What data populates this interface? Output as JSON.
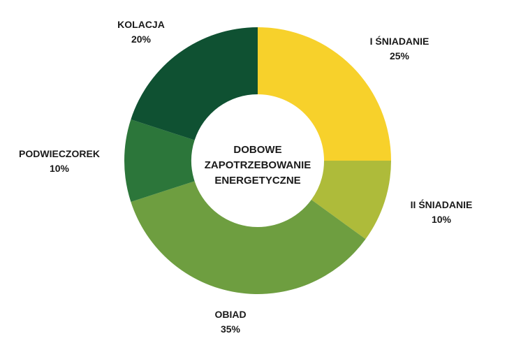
{
  "chart_data": {
    "type": "pie",
    "title": "",
    "center_label": [
      "DOBOWE",
      "ZAPOTRZEBOWANIE",
      "ENERGETYCZNE"
    ],
    "slices": [
      {
        "label": "I ŚNIADANIE",
        "percent_label": "25%",
        "value": 25,
        "color": "#F7D12B"
      },
      {
        "label": "II ŚNIADANIE",
        "percent_label": "10%",
        "value": 10,
        "color": "#AEBB3A"
      },
      {
        "label": "OBIAD",
        "percent_label": "35%",
        "value": 35,
        "color": "#6E9E40"
      },
      {
        "label": "PODWIECZOREK",
        "percent_label": "10%",
        "value": 10,
        "color": "#2C763A"
      },
      {
        "label": "KOLACJA",
        "percent_label": "20%",
        "value": 20,
        "color": "#0F5132"
      }
    ]
  }
}
